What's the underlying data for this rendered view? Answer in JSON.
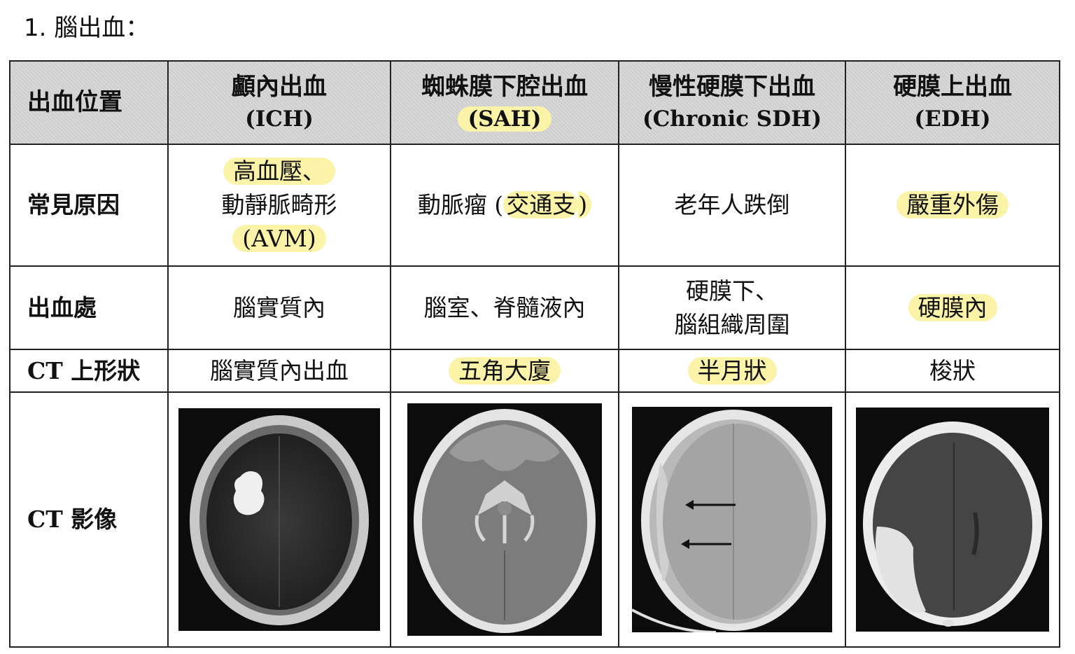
{
  "title": "1. 腦出血：",
  "header": {
    "label": "出血位置",
    "columns": [
      {
        "zh": "顱內出血",
        "en": "(ICH)"
      },
      {
        "zh": "蜘蛛膜下腔出血",
        "en": "(SAH)"
      },
      {
        "zh": "慢性硬膜下出血",
        "en": "(Chronic SDH)"
      },
      {
        "zh": "硬膜上出血",
        "en": "(EDH)"
      }
    ]
  },
  "rows": {
    "cause": {
      "label": "常見原因",
      "ich": {
        "line1": "高血壓、",
        "line2": "動靜脈畸形",
        "line3": "(AVM)"
      },
      "sah": {
        "prefix": "動脈瘤 (",
        "highlight": "交通支",
        "suffix": ")"
      },
      "sdh": "老年人跌倒",
      "edh": "嚴重外傷"
    },
    "site": {
      "label": "出血處",
      "ich": "腦實質內",
      "sah": "腦室、脊髓液內",
      "sdh": {
        "line1": "硬膜下、",
        "line2": "腦組織周圍"
      },
      "edh": "硬膜內"
    },
    "shape": {
      "label": "CT 上形狀",
      "ich": "腦實質內出血",
      "sah": "五角大廈",
      "sdh": "半月狀",
      "edh": "梭狀"
    },
    "image": {
      "label": "CT 影像"
    }
  },
  "colors": {
    "highlight": "#fbf3a8",
    "header_bg": "#d6d6d6",
    "border": "#222222"
  }
}
